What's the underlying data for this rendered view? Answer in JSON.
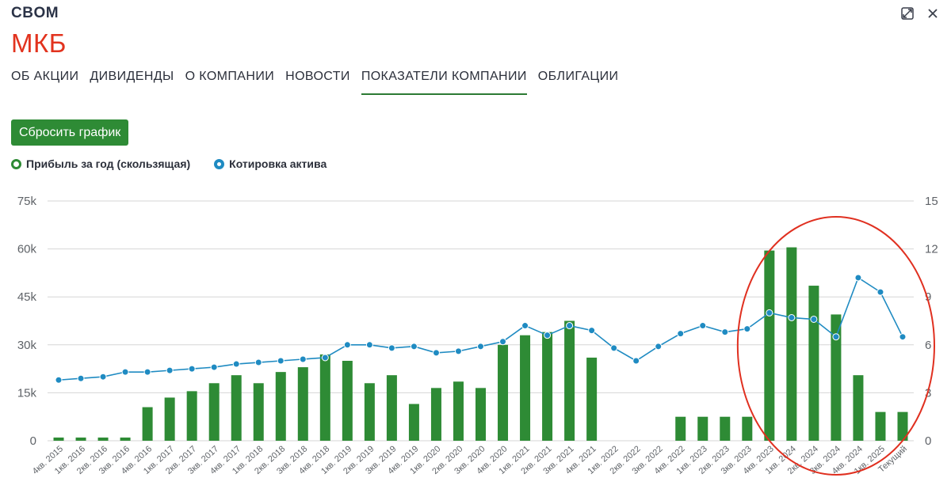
{
  "header": {
    "ticker": "CBOM",
    "company": "МКБ"
  },
  "window": {
    "expand_icon": "expand-icon",
    "close_icon": "close-icon"
  },
  "tabs": [
    {
      "label": "ОБ АКЦИИ",
      "active": false
    },
    {
      "label": "ДИВИДЕНДЫ",
      "active": false
    },
    {
      "label": "О КОМПАНИИ",
      "active": false
    },
    {
      "label": "НОВОСТИ",
      "active": false
    },
    {
      "label": "ПОКАЗАТЕЛИ КОМПАНИИ",
      "active": true
    },
    {
      "label": "ОБЛИГАЦИИ",
      "active": false
    }
  ],
  "reset_button": "Сбросить график",
  "legend": [
    {
      "label": "Прибыль за год (скользящая)",
      "color": "#2e8b35"
    },
    {
      "label": "Котировка актива",
      "color": "#1f8bc2"
    }
  ],
  "colors": {
    "bar": "#2e8b35",
    "line": "#1f8bc2",
    "grid": "#d6d6d6",
    "annotation": "#e03020"
  },
  "chart_data": {
    "type": "bar+line",
    "categories": [
      "4кв. 2015",
      "1кв. 2016",
      "2кв. 2016",
      "3кв. 2016",
      "4кв. 2016",
      "1кв. 2017",
      "2кв. 2017",
      "3кв. 2017",
      "4кв. 2017",
      "1кв. 2018",
      "2кв. 2018",
      "3кв. 2018",
      "4кв. 2018",
      "1кв. 2019",
      "2кв. 2019",
      "3кв. 2019",
      "4кв. 2019",
      "1кв. 2020",
      "2кв. 2020",
      "3кв. 2020",
      "4кв. 2020",
      "1кв. 2021",
      "2кв. 2021",
      "3кв. 2021",
      "4кв. 2021",
      "1кв. 2022",
      "2кв. 2022",
      "3кв. 2022",
      "4кв. 2022",
      "1кв. 2023",
      "2кв. 2023",
      "3кв. 2023",
      "4кв. 2023",
      "1кв. 2024",
      "2кв. 2024",
      "3кв. 2024",
      "4кв. 2024",
      "1кв. 2025",
      "Текущий"
    ],
    "series": [
      {
        "name": "Прибыль за год (скользящая)",
        "type": "bar",
        "axis": "left",
        "values": [
          1000,
          1000,
          1000,
          1000,
          10500,
          13500,
          15500,
          18000,
          20500,
          18000,
          21500,
          23000,
          27000,
          25000,
          18000,
          20500,
          11500,
          16500,
          18500,
          16500,
          30000,
          33000,
          34000,
          37500,
          26000,
          0,
          0,
          0,
          7500,
          7500,
          7500,
          7500,
          59500,
          60500,
          48500,
          39500,
          20500,
          9000,
          9000
        ]
      },
      {
        "name": "Котировка актива",
        "type": "line",
        "axis": "right",
        "values": [
          3.8,
          3.9,
          4.0,
          4.3,
          4.3,
          4.4,
          4.5,
          4.6,
          4.8,
          4.9,
          5.0,
          5.1,
          5.2,
          6.0,
          6.0,
          5.8,
          5.9,
          5.5,
          5.6,
          5.9,
          6.2,
          7.2,
          6.6,
          7.2,
          6.9,
          5.8,
          5.0,
          5.9,
          6.7,
          7.2,
          6.8,
          7.0,
          8.0,
          7.7,
          7.6,
          6.5,
          10.2,
          9.3,
          6.5
        ]
      }
    ],
    "yticks_left": [
      "0",
      "15k",
      "30k",
      "45k",
      "60k",
      "75k"
    ],
    "yticks_right": [
      "0",
      "3",
      "6",
      "9",
      "12",
      "15"
    ],
    "ylim_left": [
      0,
      75000
    ],
    "ylim_right": [
      0,
      15
    ],
    "grid": true,
    "annotation": {
      "shape": "ellipse",
      "around_categories": [
        "4кв. 2023",
        "Текущий"
      ]
    }
  }
}
